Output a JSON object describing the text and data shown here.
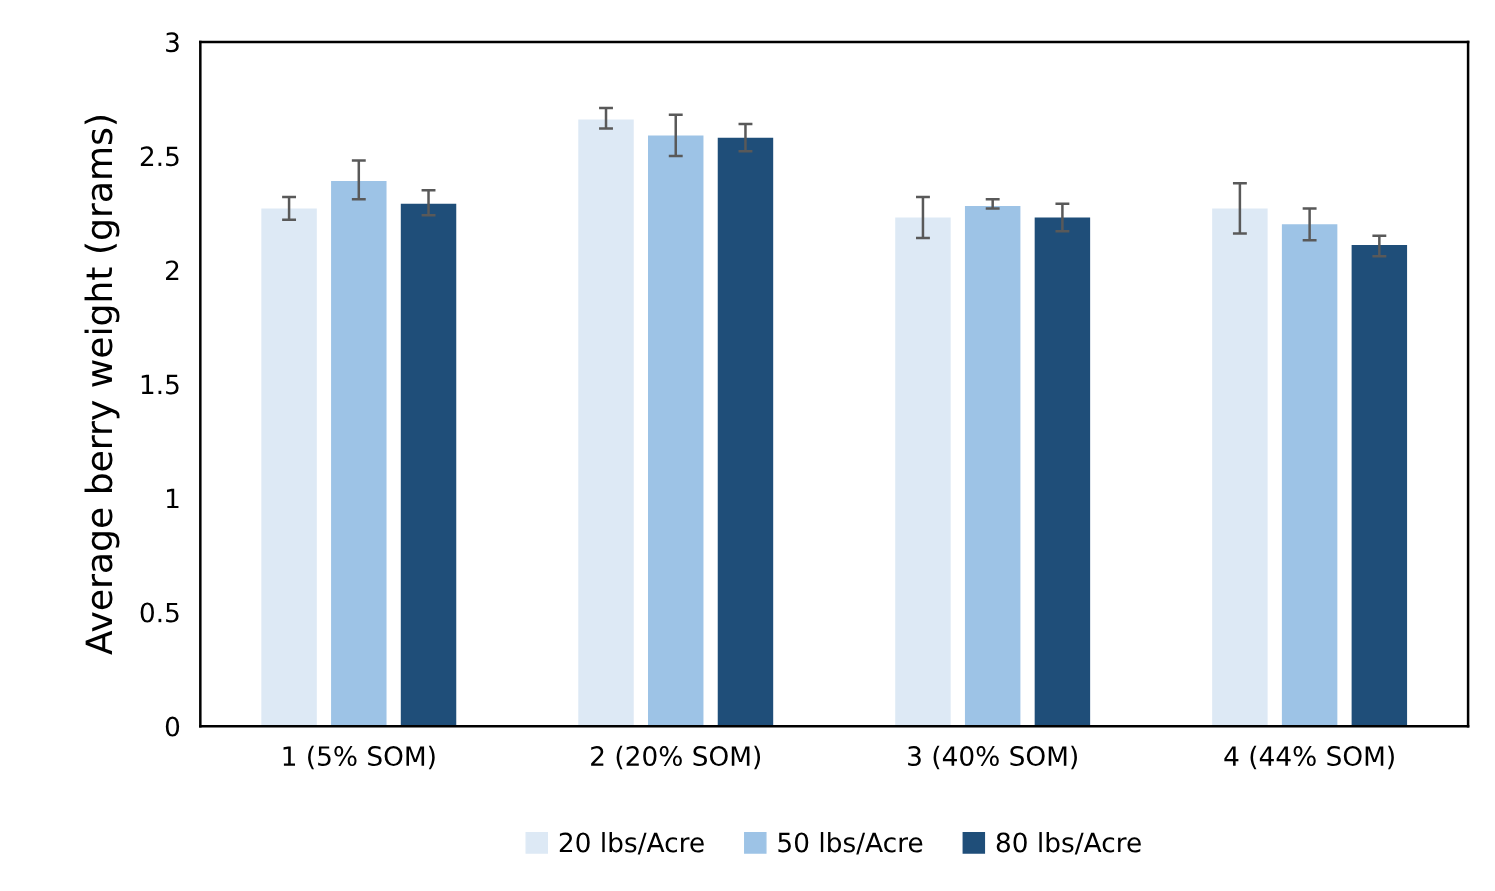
{
  "chart_data": {
    "type": "bar",
    "ylabel": "Average berry weight (grams)",
    "categories": [
      "1 (5% SOM)",
      "2 (20% SOM)",
      "3 (40% SOM)",
      "4 (44% SOM)"
    ],
    "series": [
      {
        "name": "20 lbs/Acre",
        "color": "#dde9f5",
        "values": [
          2.27,
          2.66,
          2.23,
          2.27
        ],
        "errors": [
          [
            2.22,
            2.32
          ],
          [
            2.62,
            2.71
          ],
          [
            2.14,
            2.32
          ],
          [
            2.16,
            2.38
          ]
        ]
      },
      {
        "name": "50 lbs/Acre",
        "color": "#9dc3e6",
        "values": [
          2.39,
          2.59,
          2.28,
          2.2
        ],
        "errors": [
          [
            2.31,
            2.48
          ],
          [
            2.5,
            2.68
          ],
          [
            2.27,
            2.31
          ],
          [
            2.13,
            2.27
          ]
        ]
      },
      {
        "name": "80 lbs/Acre",
        "color": "#1f4e79",
        "values": [
          2.29,
          2.58,
          2.23,
          2.11
        ],
        "errors": [
          [
            2.24,
            2.35
          ],
          [
            2.52,
            2.64
          ],
          [
            2.17,
            2.29
          ],
          [
            2.06,
            2.15
          ]
        ]
      }
    ],
    "ylim": [
      0,
      3
    ],
    "yticks": [
      0,
      0.5,
      1,
      1.5,
      2,
      2.5,
      3
    ],
    "grid": false,
    "legend": "bottom"
  }
}
